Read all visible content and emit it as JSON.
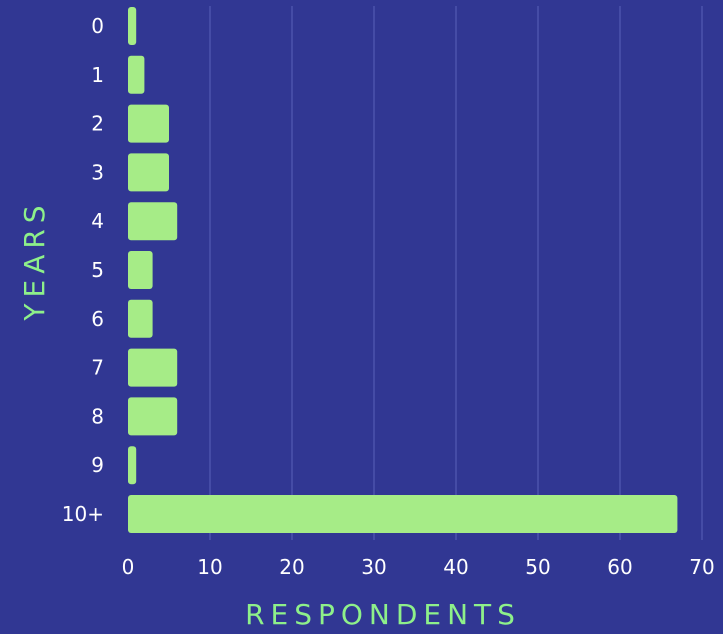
{
  "chart_data": {
    "type": "bar",
    "orientation": "horizontal",
    "categories": [
      "0",
      "1",
      "2",
      "3",
      "4",
      "5",
      "6",
      "7",
      "8",
      "9",
      "10+"
    ],
    "values": [
      1,
      2,
      5,
      5,
      6,
      3,
      3,
      6,
      6,
      1,
      67
    ],
    "xlabel": "RESPONDENTS",
    "ylabel": "YEARS",
    "xlim": [
      0,
      70
    ],
    "xticks": [
      "0",
      "10",
      "20",
      "30",
      "40",
      "50",
      "60",
      "70"
    ],
    "grid": "vertical",
    "legend": "none",
    "colors": {
      "background": "#313793",
      "bar": "#a6ec87",
      "axis_title": "#8ef08a",
      "tick_label": "#ffffff",
      "grid": "#5960b8"
    }
  }
}
